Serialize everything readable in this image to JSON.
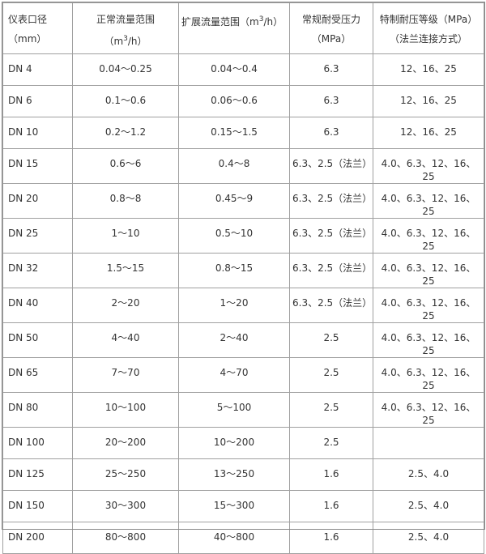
{
  "headers": {
    "diameter": "仪表口径（mm）",
    "normal_flow_pre": "正常流量范围（m",
    "normal_flow_post": "/h）",
    "ext_flow_pre": "扩展流量范围（m",
    "ext_flow_post": "/h）",
    "sup": "3",
    "pressure": "常规耐受压力（MPa）",
    "special": "特制耐压等级（MPa）（法兰连接方式）"
  },
  "rows": [
    [
      "DN 4",
      "0.04～0.25",
      "0.04～0.4",
      "6.3",
      "12、16、25"
    ],
    [
      "DN 6",
      "0.1～0.6",
      "0.06～0.6",
      "6.3",
      "12、16、25"
    ],
    [
      "DN 10",
      "0.2～1.2",
      "0.15～1.5",
      "6.3",
      "12、16、25"
    ],
    [
      "DN 15",
      "0.6～6",
      "0.4～8",
      "6.3、2.5（法兰）",
      "4.0、6.3、12、16、25"
    ],
    [
      "DN 20",
      "0.8～8",
      "0.45～9",
      "6.3、2.5（法兰）",
      "4.0、6.3、12、16、25"
    ],
    [
      "DN 25",
      "1～10",
      "0.5～10",
      "6.3、2.5（法兰）",
      "4.0、6.3、12、16、25"
    ],
    [
      "DN 32",
      "1.5～15",
      "0.8～15",
      "6.3、2.5（法兰）",
      "4.0、6.3、12、16、25"
    ],
    [
      "DN 40",
      "2～20",
      "1～20",
      "6.3、2.5（法兰）",
      "4.0、6.3、12、16、25"
    ],
    [
      "DN 50",
      "4～40",
      "2～40",
      "2.5",
      "4.0、6.3、12、16、25"
    ],
    [
      "DN 65",
      "7～70",
      "4～70",
      "2.5",
      "4.0、6.3、12、16、25"
    ],
    [
      "DN 80",
      "10～100",
      "5～100",
      "2.5",
      "4.0、6.3、12、16、25"
    ],
    [
      "DN 100",
      "20～200",
      "10～200",
      "2.5",
      ""
    ],
    [
      "DN 125",
      "25～250",
      "13～250",
      "1.6",
      "2.5、4.0"
    ],
    [
      "DN 150",
      "30～300",
      "15～300",
      "1.6",
      "2.5、4.0"
    ],
    [
      "DN 200",
      "80～800",
      "40～800",
      "1.6",
      "2.5、4.0"
    ]
  ]
}
